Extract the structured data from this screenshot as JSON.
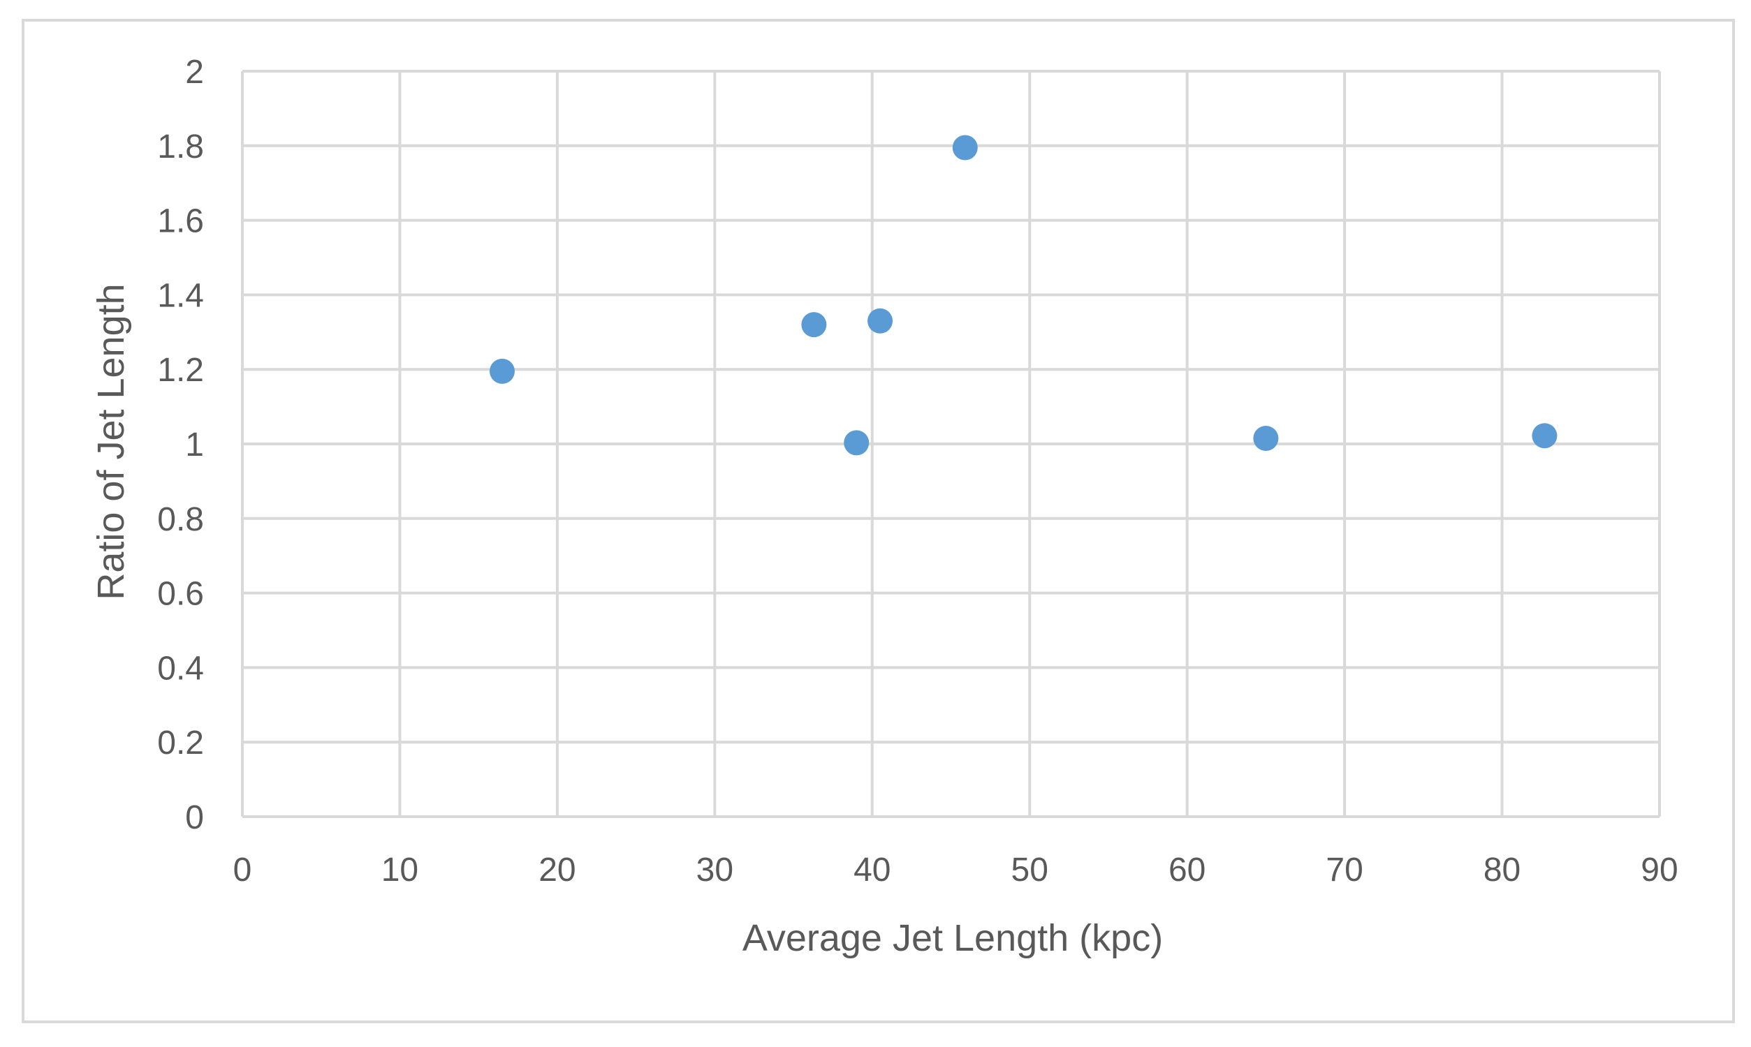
{
  "chart_data": {
    "type": "scatter",
    "title": "",
    "xlabel": "Average Jet Length (kpc)",
    "ylabel": "Ratio  of Jet Length",
    "xlim": [
      0,
      90
    ],
    "ylim": [
      0,
      2
    ],
    "x_ticks": [
      0,
      10,
      20,
      30,
      40,
      50,
      60,
      70,
      80,
      90
    ],
    "y_ticks": [
      0,
      0.2,
      0.4,
      0.6,
      0.8,
      1,
      1.2,
      1.4,
      1.6,
      1.8,
      2
    ],
    "x_tick_labels": [
      "0",
      "10",
      "20",
      "30",
      "40",
      "50",
      "60",
      "70",
      "80",
      "90"
    ],
    "y_tick_labels": [
      "0",
      "0.2",
      "0.4",
      "0.6",
      "0.8",
      "1",
      "1.2",
      "1.4",
      "1.6",
      "1.8",
      "2"
    ],
    "grid": true,
    "legend": "none",
    "colors": {
      "marker": "#5B9BD5",
      "grid": "#D9D9D9",
      "text": "#595959",
      "frame": "#D9D9D9"
    },
    "series": [
      {
        "points": [
          {
            "x": 16.5,
            "y": 1.195
          },
          {
            "x": 36.3,
            "y": 1.32
          },
          {
            "x": 39.0,
            "y": 1.003
          },
          {
            "x": 40.5,
            "y": 1.33
          },
          {
            "x": 45.9,
            "y": 1.795
          },
          {
            "x": 65.0,
            "y": 1.015
          },
          {
            "x": 82.7,
            "y": 1.022
          }
        ]
      }
    ]
  }
}
